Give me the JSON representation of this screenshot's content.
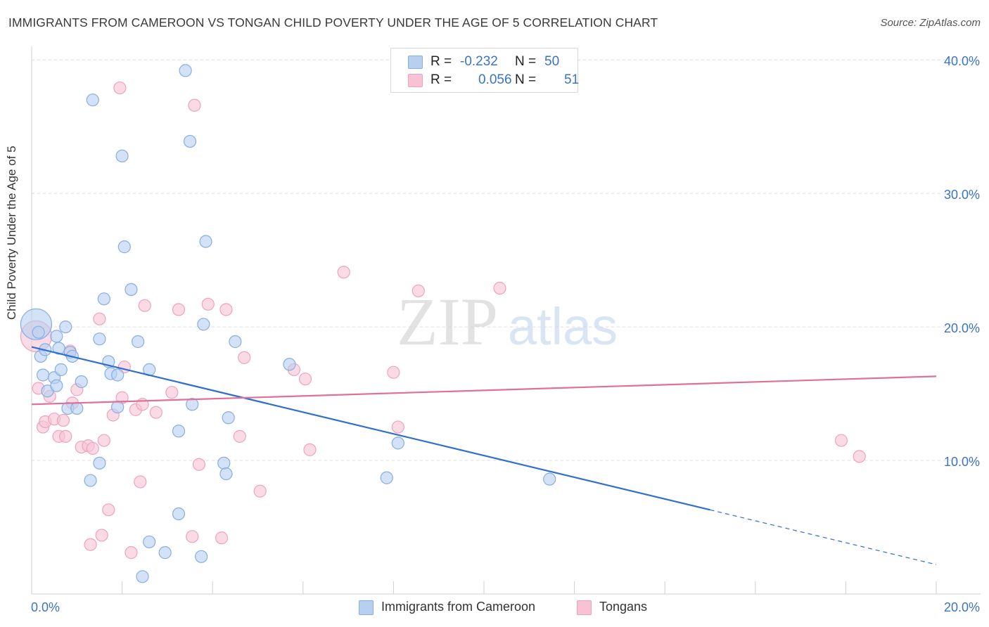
{
  "title": "IMMIGRANTS FROM CAMEROON VS TONGAN CHILD POVERTY UNDER THE AGE OF 5 CORRELATION CHART",
  "source": "Source: ZipAtlas.com",
  "watermark": {
    "zip": "ZIP",
    "atlas": "atlas"
  },
  "legend": {
    "series1": {
      "r_label": "R =",
      "r_value": "-0.232",
      "n_label": "N =",
      "n_value": "50"
    },
    "series2": {
      "r_label": "R =",
      "r_value": "0.056",
      "n_label": "N =",
      "n_value": "51"
    }
  },
  "colors": {
    "blue_fill": "#b8d0f0",
    "blue_stroke": "#86aee3",
    "blue_line": "#2f6fd0",
    "pink_fill": "#f7c3d4",
    "pink_stroke": "#eea3bd",
    "pink_line": "#e0709a",
    "axis_text": "#3a74c4",
    "grid": "#dcdcdc"
  },
  "chart_data": {
    "type": "scatter",
    "title": "IMMIGRANTS FROM CAMEROON VS TONGAN CHILD POVERTY UNDER THE AGE OF 5 CORRELATION CHART",
    "xlabel": "",
    "ylabel": "Child Poverty Under the Age of 5",
    "xlim": [
      0,
      20
    ],
    "ylim": [
      0,
      40.8
    ],
    "x_tick_labels": [
      "0.0%",
      "20.0%"
    ],
    "y_ticks": [
      10,
      20,
      30,
      40
    ],
    "y_tick_labels": [
      "10.0%",
      "20.0%",
      "30.0%",
      "40.0%"
    ],
    "grid": true,
    "legend_position": "bottom",
    "series": [
      {
        "name": "Immigrants from Cameroon",
        "color": "#b8d0f0",
        "trend": {
          "x": [
            0,
            15
          ],
          "y": [
            18.5,
            6.3
          ],
          "dashed_to": [
            20,
            2.2
          ]
        },
        "points": [
          [
            0.1,
            20.2
          ],
          [
            0.15,
            19.6
          ],
          [
            0.2,
            17.8
          ],
          [
            0.3,
            18.3
          ],
          [
            0.25,
            16.4
          ],
          [
            0.35,
            15.2
          ],
          [
            0.55,
            19.3
          ],
          [
            0.6,
            18.4
          ],
          [
            0.75,
            20.0
          ],
          [
            0.85,
            18.1
          ],
          [
            0.9,
            17.8
          ],
          [
            0.5,
            16.2
          ],
          [
            0.65,
            16.8
          ],
          [
            0.55,
            15.6
          ],
          [
            0.8,
            13.9
          ],
          [
            1.0,
            13.9
          ],
          [
            1.1,
            15.9
          ],
          [
            1.5,
            19.1
          ],
          [
            1.6,
            22.1
          ],
          [
            1.7,
            17.4
          ],
          [
            1.75,
            16.5
          ],
          [
            1.9,
            16.4
          ],
          [
            1.9,
            14.0
          ],
          [
            2.05,
            26.0
          ],
          [
            2.2,
            22.8
          ],
          [
            2.35,
            18.9
          ],
          [
            2.6,
            16.8
          ],
          [
            2.0,
            32.8
          ],
          [
            1.35,
            37.0
          ],
          [
            3.4,
            39.2
          ],
          [
            3.5,
            33.9
          ],
          [
            3.8,
            20.2
          ],
          [
            3.85,
            26.4
          ],
          [
            3.55,
            14.2
          ],
          [
            3.25,
            12.2
          ],
          [
            4.35,
            13.2
          ],
          [
            4.5,
            18.9
          ],
          [
            4.25,
            9.8
          ],
          [
            4.3,
            9.0
          ],
          [
            3.25,
            6.0
          ],
          [
            1.5,
            9.8
          ],
          [
            1.3,
            8.5
          ],
          [
            2.6,
            3.9
          ],
          [
            2.95,
            3.1
          ],
          [
            3.75,
            2.8
          ],
          [
            2.45,
            1.3
          ],
          [
            5.7,
            17.2
          ],
          [
            8.1,
            11.3
          ],
          [
            7.85,
            8.7
          ],
          [
            11.45,
            8.6
          ]
        ]
      },
      {
        "name": "Tongans",
        "color": "#f7c3d4",
        "trend": {
          "x": [
            0,
            20
          ],
          "y": [
            14.2,
            16.3
          ]
        },
        "points": [
          [
            0.1,
            19.3
          ],
          [
            0.15,
            15.4
          ],
          [
            0.25,
            12.5
          ],
          [
            0.3,
            12.9
          ],
          [
            0.4,
            14.8
          ],
          [
            0.5,
            13.1
          ],
          [
            0.6,
            11.8
          ],
          [
            0.75,
            11.8
          ],
          [
            0.7,
            13.0
          ],
          [
            1.0,
            15.3
          ],
          [
            0.9,
            14.3
          ],
          [
            1.1,
            11.0
          ],
          [
            1.25,
            11.1
          ],
          [
            1.35,
            10.9
          ],
          [
            0.85,
            18.2
          ],
          [
            1.5,
            20.6
          ],
          [
            1.6,
            11.5
          ],
          [
            1.8,
            13.4
          ],
          [
            1.95,
            37.9
          ],
          [
            2.0,
            14.7
          ],
          [
            2.05,
            17.0
          ],
          [
            2.3,
            13.8
          ],
          [
            2.45,
            14.2
          ],
          [
            2.5,
            21.6
          ],
          [
            2.75,
            13.6
          ],
          [
            3.1,
            15.1
          ],
          [
            3.25,
            21.3
          ],
          [
            3.6,
            36.6
          ],
          [
            3.7,
            9.7
          ],
          [
            3.9,
            21.7
          ],
          [
            4.3,
            21.3
          ],
          [
            4.6,
            11.8
          ],
          [
            4.7,
            17.7
          ],
          [
            5.05,
            7.7
          ],
          [
            6.05,
            16.1
          ],
          [
            5.8,
            16.8
          ],
          [
            6.15,
            10.8
          ],
          [
            6.9,
            24.1
          ],
          [
            8.0,
            16.6
          ],
          [
            8.1,
            12.5
          ],
          [
            8.55,
            22.7
          ],
          [
            10.35,
            22.9
          ],
          [
            1.3,
            3.7
          ],
          [
            1.55,
            4.4
          ],
          [
            1.7,
            6.3
          ],
          [
            2.2,
            3.1
          ],
          [
            2.4,
            8.4
          ],
          [
            3.55,
            4.3
          ],
          [
            4.2,
            4.2
          ],
          [
            17.9,
            11.5
          ],
          [
            18.3,
            10.3
          ]
        ]
      }
    ]
  }
}
